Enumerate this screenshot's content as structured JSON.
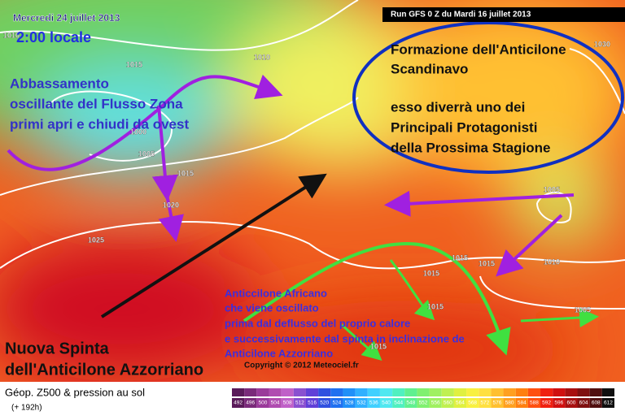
{
  "header": {
    "date": "Mercredi 24 juillet 2013",
    "time": "2:00 locale",
    "run": "Run GFS 0 Z du Mardi 16 juillet 2013"
  },
  "annotations": {
    "scandinavian": [
      "Formazione dell'Anticilone",
      "Scandinavo",
      "esso diverrà uno dei",
      "Principali Protagonisti",
      "della Prossima Stagione"
    ],
    "zonal": [
      "Abbassamento",
      "oscillante del Flusso Zona",
      "primi apri e chiudi da ovest"
    ],
    "african": [
      "Anticcilone Africano",
      "che viene oscillato",
      "prima dal deflusso del proprio calore",
      "e successivamente dal spinta in inclinazione de",
      "Anticilone Azzorriano"
    ],
    "azores": [
      "Nuova Spinta",
      "dell'Anticilone Azzorriano"
    ]
  },
  "isobars": [
    "1010",
    "1015",
    "1010",
    "1000",
    "1005",
    "1015",
    "1020",
    "1025",
    "1030",
    "1005",
    "1015",
    "1015",
    "1010",
    "1015",
    "1015",
    "1005",
    "1015"
  ],
  "copyright": "Copyright © 2012 Meteociel.fr",
  "footer": {
    "title": "Géop. Z500 & pression au sol",
    "lead": "(+ 192h)"
  },
  "scale": {
    "labels": [
      492,
      496,
      500,
      504,
      508,
      512,
      516,
      520,
      524,
      528,
      532,
      536,
      540,
      544,
      548,
      552,
      556,
      560,
      564,
      568,
      572,
      576,
      580,
      584,
      588,
      592,
      596,
      600,
      604,
      608,
      612
    ],
    "colors": [
      "#5a1a5a",
      "#7a2a7a",
      "#9a3a9a",
      "#b04cb0",
      "#c060c8",
      "#8a50d0",
      "#6040d8",
      "#3050e0",
      "#2070f0",
      "#2090f8",
      "#30b0ff",
      "#40d0ff",
      "#50e8f0",
      "#50f0c0",
      "#60f090",
      "#80f070",
      "#a0f060",
      "#c0f050",
      "#e0f040",
      "#f8f040",
      "#ffe040",
      "#ffc030",
      "#ffa020",
      "#ff8010",
      "#ff5010",
      "#f02010",
      "#d01010",
      "#a81010",
      "#801010",
      "#501010",
      "#101010"
    ]
  }
}
